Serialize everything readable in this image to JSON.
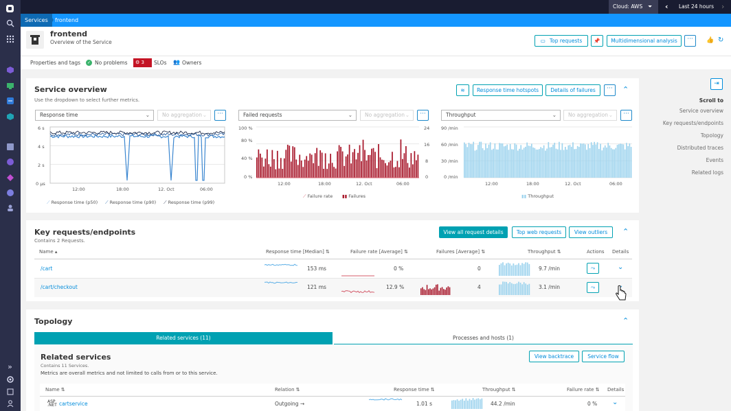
{
  "topbar": {
    "cloud_label": "Cloud: AWS",
    "timeframe": "Last 24 hours"
  },
  "breadcrumb": {
    "items": [
      "Services",
      "frontend"
    ]
  },
  "service": {
    "name": "frontend",
    "subtitle": "Overview of the Service"
  },
  "header_buttons": {
    "top_requests": "Top requests",
    "multidimensional": "Multidimensional analysis"
  },
  "status_bar": {
    "properties": "Properties and tags",
    "problems": "No problems",
    "slo_count": "3",
    "slos": "SLOs",
    "owners": "Owners"
  },
  "overview": {
    "title": "Service overview",
    "hint": "Use the dropdown to select further metrics.",
    "btn_hotspots": "Response time hotspots",
    "btn_failures": "Details of failures",
    "dropdowns": [
      "Response time",
      "Failed requests",
      "Throughput"
    ],
    "aggregation": "No aggregation"
  },
  "charts": {
    "rt": {
      "yticks": [
        "6 s",
        "4 s",
        "2 s",
        "0 µs"
      ],
      "xticks": [
        "12:00",
        "18:00",
        "12. Oct",
        "06:00"
      ],
      "legend": [
        "Response time (p50)",
        "Response time (p90)",
        "Response time (p99)"
      ]
    },
    "fr": {
      "yticks": [
        "100 %",
        "80 %",
        "40 %",
        "0 %"
      ],
      "y2ticks": [
        "24",
        "16",
        "8",
        "0"
      ],
      "xticks": [
        "12:00",
        "18:00",
        "12. Oct",
        "06:00"
      ],
      "legend": [
        "Failure rate",
        "Failures"
      ]
    },
    "tp": {
      "yticks": [
        "90 /min",
        "60 /min",
        "30 /min",
        "0 /min"
      ],
      "xticks": [
        "12:00",
        "18:00",
        "12. Oct",
        "06:00"
      ],
      "legend": [
        "Throughput"
      ]
    }
  },
  "chart_data": [
    {
      "type": "line",
      "title": "Response time",
      "ylim": [
        0,
        6
      ],
      "ylabel": "s",
      "xticks": [
        "12:00",
        "18:00",
        "12. Oct",
        "06:00"
      ],
      "series": [
        {
          "name": "Response time (p50)",
          "approx": 5.0,
          "spikes_to": 0.3
        },
        {
          "name": "Response time (p90)",
          "approx": 5.2
        },
        {
          "name": "Response time (p99)",
          "approx": 5.4
        }
      ]
    },
    {
      "type": "bar",
      "title": "Failed requests",
      "ylim": [
        0,
        100
      ],
      "y2lim": [
        0,
        24
      ],
      "xticks": [
        "12:00",
        "18:00",
        "12. Oct",
        "06:00"
      ],
      "series": [
        {
          "name": "Failures",
          "range": [
            0,
            20
          ]
        },
        {
          "name": "Failure rate"
        }
      ]
    },
    {
      "type": "bar",
      "title": "Throughput",
      "ylim": [
        0,
        90
      ],
      "xticks": [
        "12:00",
        "18:00",
        "12. Oct",
        "06:00"
      ],
      "series": [
        {
          "name": "Throughput",
          "approx": 60
        }
      ]
    }
  ],
  "keyreq": {
    "title": "Key requests/endpoints",
    "subtitle": "Contains 2 Requests.",
    "btn_view_all": "View all request details",
    "btn_top_web": "Top web requests",
    "btn_outliers": "View outliers",
    "columns": [
      "Name",
      "Response time [Median]",
      "Failure rate [Average]",
      "Failures [Average]",
      "Throughput",
      "Actions",
      "Details"
    ],
    "rows": [
      {
        "name": "/cart",
        "rt": "153 ms",
        "fr": "0 %",
        "failures": "0",
        "tp": "9.7 /min"
      },
      {
        "name": "/cart/checkout",
        "rt": "121 ms",
        "fr": "12.9 %",
        "failures": "4",
        "tp": "3.1 /min"
      }
    ]
  },
  "topology": {
    "title": "Topology",
    "tab_related": "Related services (11)",
    "tab_processes": "Processes and hosts (1)",
    "related_title": "Related services",
    "related_sub": "Contains 11 Services.",
    "related_note": "Metrics are overall metrics and not limited to calls from or to this service.",
    "btn_backtrace": "View backtrace",
    "btn_flow": "Service flow",
    "columns": [
      "Name",
      "Relation",
      "Response time",
      "Throughput",
      "Failure rate",
      "Details"
    ],
    "rows": [
      {
        "name": "cartservice",
        "relation": "Outgoing →",
        "rt": "1.01 s",
        "tp": "44.2 /min",
        "fr": "0 %"
      }
    ]
  },
  "right_nav": {
    "title": "Scroll to",
    "items": [
      "Service overview",
      "Key requests/endpoints",
      "Topology",
      "Distributed traces",
      "Events",
      "Related logs"
    ]
  },
  "colors": {
    "accent": "#00a1b2",
    "link": "#008cdb",
    "failure": "#a8182b",
    "throughput": "#9fd4ee",
    "sidebar": "#2b2f4a"
  }
}
